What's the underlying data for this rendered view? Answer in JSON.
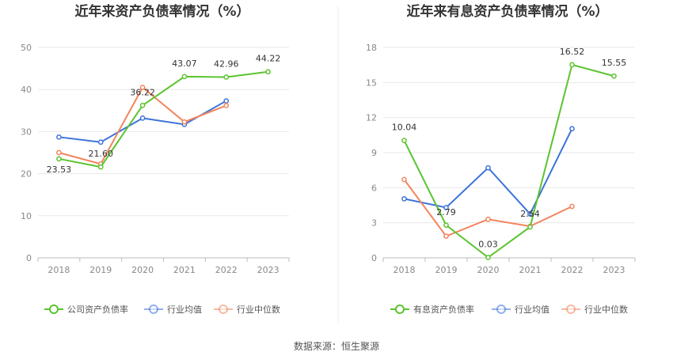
{
  "colors": {
    "company": "#5bc42f",
    "avg": "#3b73d9",
    "median": "#f2845c"
  },
  "source": "数据来源：恒生聚源",
  "chart_data": [
    {
      "type": "line",
      "title": "近年来资产负债率情况（%）",
      "categories": [
        "2018",
        "2019",
        "2020",
        "2021",
        "2022",
        "2023"
      ],
      "ylim": [
        0,
        50
      ],
      "yticks": [
        "0",
        "10",
        "20",
        "30",
        "40",
        "50"
      ],
      "grid": true,
      "legend": "bottom",
      "series": [
        {
          "name": "公司资产负债率",
          "key": "company",
          "values": [
            23.53,
            21.6,
            36.22,
            43.07,
            42.96,
            44.22
          ],
          "labels": [
            "23.53",
            "21.60",
            "36.22",
            "43.07",
            "42.96",
            "44.22"
          ]
        },
        {
          "name": "行业均值",
          "key": "avg",
          "values": [
            28.7,
            27.5,
            33.2,
            31.7,
            37.3,
            null
          ]
        },
        {
          "name": "行业中位数",
          "key": "median",
          "values": [
            25.0,
            22.3,
            40.5,
            32.3,
            36.2,
            null
          ]
        }
      ]
    },
    {
      "type": "line",
      "title": "近年来有息资产负债率情况（%）",
      "categories": [
        "2018",
        "2019",
        "2020",
        "2021",
        "2022",
        "2023"
      ],
      "ylim": [
        0,
        18
      ],
      "yticks": [
        "0",
        "3",
        "6",
        "9",
        "12",
        "15",
        "18"
      ],
      "grid": true,
      "legend": "bottom",
      "series": [
        {
          "name": "有息资产负债率",
          "key": "company",
          "values": [
            10.04,
            2.79,
            0.03,
            2.64,
            16.52,
            15.55
          ],
          "labels": [
            "10.04",
            "2.79",
            "0.03",
            "2.64",
            "16.52",
            "15.55"
          ]
        },
        {
          "name": "行业均值",
          "key": "avg",
          "values": [
            5.05,
            4.3,
            7.7,
            3.75,
            11.05,
            null
          ]
        },
        {
          "name": "行业中位数",
          "key": "median",
          "values": [
            6.7,
            1.85,
            3.3,
            2.7,
            4.4,
            null
          ]
        }
      ]
    }
  ]
}
